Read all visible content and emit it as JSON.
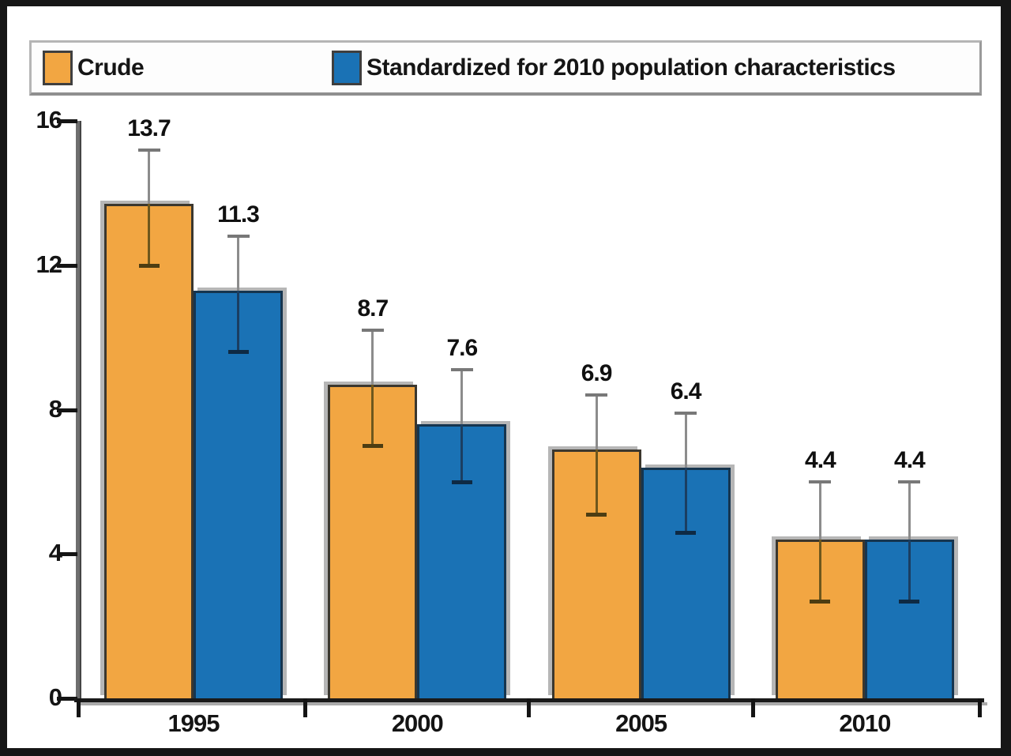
{
  "legend": {
    "items": [
      {
        "label": "Crude",
        "color": "#F2A642"
      },
      {
        "label": "Standardized for 2010 population characteristics",
        "color": "#1A72B5"
      }
    ]
  },
  "chart_data": {
    "type": "bar",
    "categories": [
      "1995",
      "2000",
      "2005",
      "2010"
    ],
    "series": [
      {
        "name": "Crude",
        "color": "#F2A642",
        "border_color": "#3b372e",
        "error_inner_color": "#6e571d",
        "error_cap_color": "#4d3d12",
        "values": [
          13.7,
          8.7,
          6.9,
          4.4
        ],
        "error_low": [
          12.0,
          7.0,
          5.1,
          2.7
        ],
        "error_high": [
          15.2,
          10.2,
          8.4,
          6.0
        ]
      },
      {
        "name": "Standardized for 2010 population characteristics",
        "color": "#1A72B5",
        "border_color": "#16354f",
        "error_inner_color": "#1b3e61",
        "error_cap_color": "#0e2a44",
        "values": [
          11.3,
          7.6,
          6.4,
          4.4
        ],
        "error_low": [
          9.6,
          6.0,
          4.6,
          2.7
        ],
        "error_high": [
          12.8,
          9.1,
          7.9,
          6.0
        ]
      }
    ],
    "value_labels": [
      "13.7",
      "11.3",
      "8.7",
      "7.6",
      "6.9",
      "6.4",
      "4.4",
      "4.4"
    ],
    "yticks": [
      "0",
      "4",
      "8",
      "12",
      "16"
    ],
    "ylim": [
      0,
      16
    ],
    "xlabel": "",
    "ylabel": "",
    "title": "",
    "grid": "off",
    "legend_position": "top",
    "error_line_color": "#8c8c8c",
    "error_top_cap_color": "#787878"
  }
}
